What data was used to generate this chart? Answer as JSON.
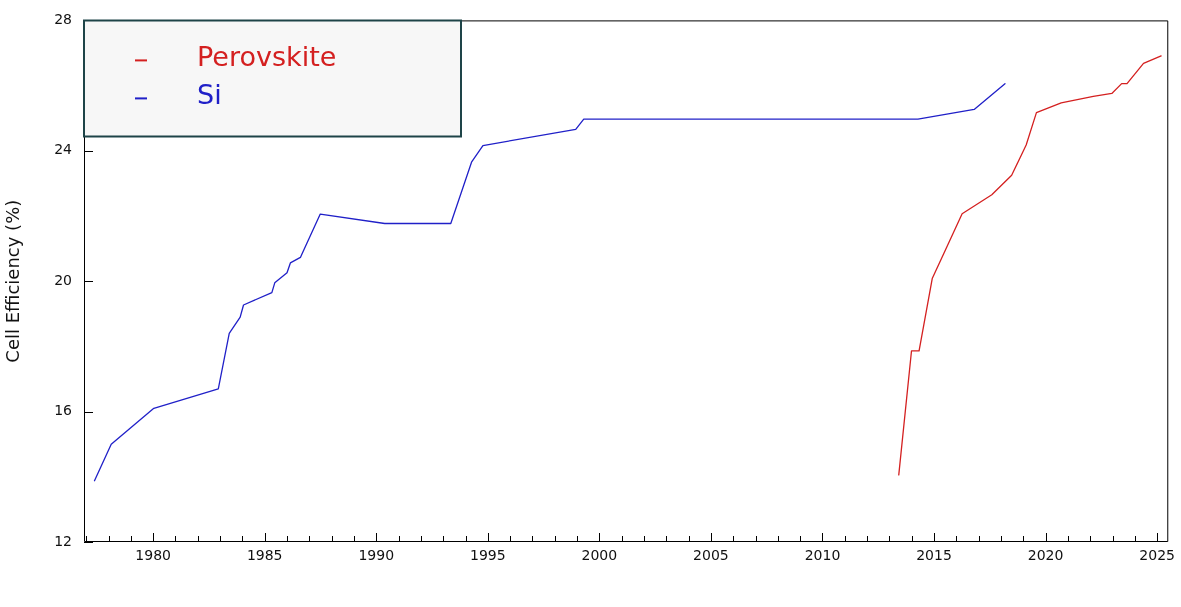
{
  "chart_data": {
    "type": "line",
    "ylabel": "Cell Efficiency (%)",
    "xlim": [
      1976.9,
      2025.5
    ],
    "xticks": [
      {
        "value": 1977,
        "label": null
      },
      {
        "value": 1978,
        "label": null
      },
      {
        "value": 1979,
        "label": null
      },
      1980,
      {
        "value": 1981,
        "label": null
      },
      {
        "value": 1982,
        "label": null
      },
      {
        "value": 1983,
        "label": null
      },
      {
        "value": 1984,
        "label": null
      },
      1985,
      {
        "value": 1986,
        "label": null
      },
      {
        "value": 1987,
        "label": null
      },
      {
        "value": 1988,
        "label": null
      },
      {
        "value": 1989,
        "label": null
      },
      1990,
      {
        "value": 1991,
        "label": null
      },
      {
        "value": 1992,
        "label": null
      },
      {
        "value": 1993,
        "label": null
      },
      {
        "value": 1994,
        "label": null
      },
      1995,
      {
        "value": 1996,
        "label": null
      },
      {
        "value": 1997,
        "label": null
      },
      {
        "value": 1998,
        "label": null
      },
      {
        "value": 1999,
        "label": null
      },
      2000,
      {
        "value": 2001,
        "label": null
      },
      {
        "value": 2002,
        "label": null
      },
      {
        "value": 2003,
        "label": null
      },
      {
        "value": 2004,
        "label": null
      },
      2005,
      {
        "value": 2006,
        "label": null
      },
      {
        "value": 2007,
        "label": null
      },
      {
        "value": 2008,
        "label": null
      },
      {
        "value": 2009,
        "label": null
      },
      2010,
      {
        "value": 2011,
        "label": null
      },
      {
        "value": 2012,
        "label": null
      },
      {
        "value": 2013,
        "label": null
      },
      {
        "value": 2014,
        "label": null
      },
      2015,
      {
        "value": 2016,
        "label": null
      },
      {
        "value": 2017,
        "label": null
      },
      {
        "value": 2018,
        "label": null
      },
      {
        "value": 2019,
        "label": null
      },
      2020,
      {
        "value": 2021,
        "label": null
      },
      {
        "value": 2022,
        "label": null
      },
      {
        "value": 2023,
        "label": null
      },
      {
        "value": 2024,
        "label": null
      },
      2025
    ],
    "ylim": [
      12,
      28
    ],
    "yticks": [
      12,
      16,
      20,
      24,
      28
    ],
    "grid": false,
    "legend": "top left",
    "marker": "none",
    "line_style": "solid",
    "series": [
      {
        "name": "Perovskite",
        "color": "#d42020",
        "x": [
          2013.42,
          2013.99,
          2014.33,
          2014.92,
          2016.26,
          2017.59,
          2018.48,
          2019.13,
          2019.59,
          2020.7,
          2022.14,
          2022.97,
          2023.41,
          2023.65,
          2024.39,
          2025.18
        ],
        "values": [
          14.06,
          17.86,
          17.86,
          20.08,
          22.07,
          22.65,
          23.25,
          24.18,
          25.17,
          25.47,
          25.67,
          25.76,
          26.06,
          26.06,
          26.68,
          26.91
        ]
      },
      {
        "name": "Si",
        "color": "#2020c8",
        "x": [
          1977.37,
          1978.12,
          1980.03,
          1982.92,
          1983.41,
          1983.9,
          1984.05,
          1985.32,
          1985.45,
          1986.0,
          1986.15,
          1986.6,
          1987.49,
          1990.38,
          1993.34,
          1994.27,
          1994.78,
          1998.94,
          1999.3,
          2014.28,
          2016.8,
          2018.18
        ],
        "values": [
          13.88,
          15.0,
          16.1,
          16.7,
          18.4,
          18.9,
          19.27,
          19.65,
          19.95,
          20.26,
          20.56,
          20.73,
          22.06,
          21.77,
          21.77,
          23.65,
          24.16,
          24.66,
          24.97,
          24.97,
          25.27,
          26.06
        ]
      }
    ]
  }
}
